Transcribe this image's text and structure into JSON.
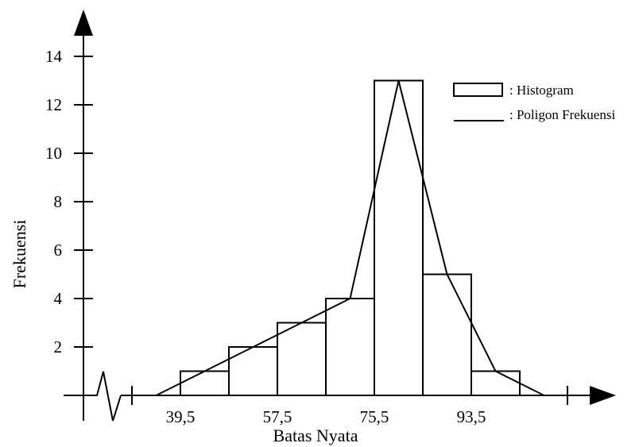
{
  "chart_data": {
    "type": "bar",
    "title": "",
    "xlabel": "Batas Nyata",
    "ylabel": "Frekuensi",
    "x_tick_labels": [
      "39,5",
      "57,5",
      "75,5",
      "93,5"
    ],
    "y_ticks": [
      2,
      4,
      6,
      8,
      10,
      12,
      14
    ],
    "ylim": [
      0,
      15
    ],
    "class_width": 9,
    "class_boundaries": [
      39.5,
      48.5,
      57.5,
      66.5,
      75.5,
      84.5,
      93.5,
      102.5
    ],
    "series": [
      {
        "name": "Histogram",
        "type": "histogram",
        "values": [
          1,
          2,
          3,
          4,
          13,
          5,
          1
        ]
      },
      {
        "name": "Poligon Frekuensi",
        "type": "line",
        "x": [
          35,
          44,
          53,
          62,
          71,
          80,
          89,
          98,
          107
        ],
        "values": [
          0,
          1,
          2,
          3,
          4,
          13,
          5,
          1,
          0
        ]
      }
    ],
    "legend": {
      "placement": "top-right",
      "entries": [
        ": Histogram",
        ": Poligon Frekuensi"
      ]
    },
    "grid": false
  }
}
